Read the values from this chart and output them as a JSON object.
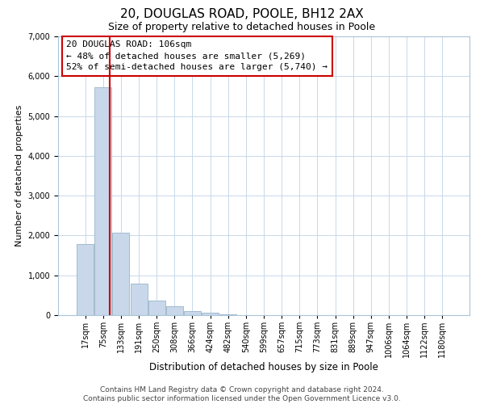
{
  "title": "20, DOUGLAS ROAD, POOLE, BH12 2AX",
  "subtitle": "Size of property relative to detached houses in Poole",
  "xlabel": "Distribution of detached houses by size in Poole",
  "ylabel": "Number of detached properties",
  "footer_line1": "Contains HM Land Registry data © Crown copyright and database right 2024.",
  "footer_line2": "Contains public sector information licensed under the Open Government Licence v3.0.",
  "bar_labels": [
    "17sqm",
    "75sqm",
    "133sqm",
    "191sqm",
    "250sqm",
    "308sqm",
    "366sqm",
    "424sqm",
    "482sqm",
    "540sqm",
    "599sqm",
    "657sqm",
    "715sqm",
    "773sqm",
    "831sqm",
    "889sqm",
    "947sqm",
    "1006sqm",
    "1064sqm",
    "1122sqm",
    "1180sqm"
  ],
  "bar_values": [
    1780,
    5730,
    2060,
    800,
    360,
    220,
    100,
    60,
    30,
    10,
    5,
    0,
    0,
    0,
    0,
    0,
    0,
    0,
    0,
    0,
    0
  ],
  "bar_color": "#c8d8ea",
  "bar_edge_color": "#9ab4c8",
  "vline_color": "#cc0000",
  "annotation_title": "20 DOUGLAS ROAD: 106sqm",
  "annotation_line1": "← 48% of detached houses are smaller (5,269)",
  "annotation_line2": "52% of semi-detached houses are larger (5,740) →",
  "annotation_box_color": "#ffffff",
  "annotation_box_edge": "#cc0000",
  "ylim": [
    0,
    7000
  ],
  "yticks": [
    0,
    1000,
    2000,
    3000,
    4000,
    5000,
    6000,
    7000
  ],
  "title_fontsize": 11,
  "subtitle_fontsize": 9,
  "xlabel_fontsize": 8.5,
  "ylabel_fontsize": 8,
  "tick_fontsize": 7,
  "annotation_fontsize": 8,
  "footer_fontsize": 6.5,
  "grid_color": "#c8d8ea",
  "vline_x_pos": 1.38
}
